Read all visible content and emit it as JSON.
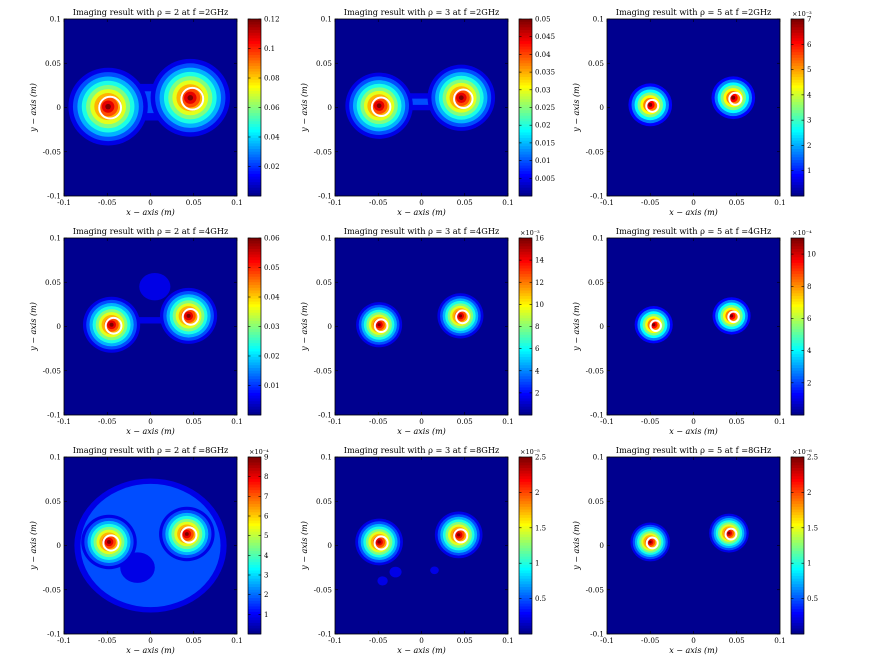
{
  "figure": {
    "colormap": "jet",
    "background_color": "#00008f"
  },
  "chart_data": [
    {
      "type": "heatmap",
      "title": "Imaging result with ρ = 2 at f =2GHz",
      "xlabel": "x − axis (m)",
      "ylabel": "y − axis (m)",
      "xlim": [
        -0.1,
        0.1
      ],
      "ylim": [
        -0.1,
        0.1
      ],
      "xticks": [
        "-0.1",
        "-0.05",
        "0",
        "0.05",
        "0.1"
      ],
      "yticks": [
        "0.1",
        "0.05",
        "0",
        "-0.05",
        "-0.1"
      ],
      "colorbar": {
        "min": 0,
        "max": 0.12,
        "ticks": [
          "0.12",
          "0.1",
          "0.08",
          "0.06",
          "0.04",
          "0.02"
        ],
        "exponent": ""
      },
      "sources": [
        {
          "x": -0.049,
          "y": 0.001
        },
        {
          "x": 0.046,
          "y": 0.011
        }
      ],
      "levels": 10,
      "spread": 1.0,
      "bridge": 0.55,
      "extra_blobs": 0
    },
    {
      "type": "heatmap",
      "title": "Imaging result with ρ = 3 at f =2GHz",
      "xlabel": "x − axis (m)",
      "ylabel": "y − axis (m)",
      "xlim": [
        -0.1,
        0.1
      ],
      "ylim": [
        -0.1,
        0.1
      ],
      "xticks": [
        "-0.1",
        "-0.05",
        "0",
        "0.05",
        "0.1"
      ],
      "yticks": [
        "0.1",
        "0.05",
        "0",
        "-0.05",
        "-0.1"
      ],
      "colorbar": {
        "min": 0,
        "max": 0.05,
        "ticks": [
          "0.05",
          "0.045",
          "0.04",
          "0.035",
          "0.03",
          "0.025",
          "0.02",
          "0.015",
          "0.01",
          "0.005"
        ],
        "exponent": ""
      },
      "sources": [
        {
          "x": -0.049,
          "y": 0.002
        },
        {
          "x": 0.046,
          "y": 0.011
        }
      ],
      "levels": 10,
      "spread": 0.85,
      "bridge": 0.35,
      "extra_blobs": 0
    },
    {
      "type": "heatmap",
      "title": "Imaging result with ρ = 5 at f =2GHz",
      "xlabel": "x − axis (m)",
      "ylabel": "y − axis (m)",
      "xlim": [
        -0.1,
        0.1
      ],
      "ylim": [
        -0.1,
        0.1
      ],
      "xticks": [
        "-0.1",
        "-0.05",
        "0",
        "0.05",
        "0.1"
      ],
      "yticks": [
        "0.1",
        "0.05",
        "0",
        "-0.05",
        "-0.1"
      ],
      "colorbar": {
        "min": 0,
        "max": 7,
        "ticks": [
          "7",
          "6",
          "5",
          "4",
          "3",
          "2",
          "1"
        ],
        "exponent": "×10⁻³"
      },
      "sources": [
        {
          "x": -0.05,
          "y": 0.003
        },
        {
          "x": 0.046,
          "y": 0.011
        }
      ],
      "levels": 8,
      "spread": 0.55,
      "bridge": 0,
      "extra_blobs": 0
    },
    {
      "type": "heatmap",
      "title": "Imaging result with ρ = 2 at f =4GHz",
      "xlabel": "x − axis (m)",
      "ylabel": "y − axis (m)",
      "xlim": [
        -0.1,
        0.1
      ],
      "ylim": [
        -0.1,
        0.1
      ],
      "xticks": [
        "-0.1",
        "-0.05",
        "0",
        "0.05",
        "0.1"
      ],
      "yticks": [
        "0.1",
        "0.05",
        "0",
        "-0.05",
        "-0.1"
      ],
      "colorbar": {
        "min": 0,
        "max": 0.06,
        "ticks": [
          "0.06",
          "0.05",
          "0.04",
          "0.03",
          "0.02",
          "0.01"
        ],
        "exponent": ""
      },
      "sources": [
        {
          "x": -0.045,
          "y": 0.002
        },
        {
          "x": 0.044,
          "y": 0.012
        }
      ],
      "levels": 10,
      "spread": 0.72,
      "bridge": 0.2,
      "extra_blobs": 1
    },
    {
      "type": "heatmap",
      "title": "Imaging result with ρ = 3 at f =4GHz",
      "xlabel": "x − axis (m)",
      "ylabel": "y − axis (m)",
      "xlim": [
        -0.1,
        0.1
      ],
      "ylim": [
        -0.1,
        0.1
      ],
      "xticks": [
        "-0.1",
        "-0.05",
        "0",
        "0.05",
        "0.1"
      ],
      "yticks": [
        "0.1",
        "0.05",
        "0",
        "-0.05",
        "-0.1"
      ],
      "colorbar": {
        "min": 0,
        "max": 16,
        "ticks": [
          "16",
          "14",
          "12",
          "10",
          "8",
          "6",
          "4",
          "2"
        ],
        "exponent": "×10⁻³"
      },
      "sources": [
        {
          "x": -0.049,
          "y": 0.002
        },
        {
          "x": 0.045,
          "y": 0.012
        }
      ],
      "levels": 10,
      "spread": 0.58,
      "bridge": 0,
      "extra_blobs": 0
    },
    {
      "type": "heatmap",
      "title": "Imaging result with ρ = 5 at f =4GHz",
      "xlabel": "x − axis (m)",
      "ylabel": "y − axis (m)",
      "xlim": [
        -0.1,
        0.1
      ],
      "ylim": [
        -0.1,
        0.1
      ],
      "xticks": [
        "-0.1",
        "-0.05",
        "0",
        "0.05",
        "0.1"
      ],
      "yticks": [
        "0.1",
        "0.05",
        "0",
        "-0.05",
        "-0.1"
      ],
      "colorbar": {
        "min": 0,
        "max": 11,
        "ticks": [
          "10",
          "8",
          "6",
          "4",
          "2"
        ],
        "exponent": "×10⁻⁴"
      },
      "sources": [
        {
          "x": -0.046,
          "y": 0.002
        },
        {
          "x": 0.044,
          "y": 0.012
        }
      ],
      "levels": 8,
      "spread": 0.48,
      "bridge": 0,
      "extra_blobs": 0
    },
    {
      "type": "heatmap",
      "title": "Imaging result with ρ = 2 at f =8GHz",
      "xlabel": "x − axis (m)",
      "ylabel": "y − axis (m)",
      "xlim": [
        -0.1,
        0.1
      ],
      "ylim": [
        -0.1,
        0.1
      ],
      "xticks": [
        "-0.1",
        "-0.05",
        "0",
        "0.05",
        "0.1"
      ],
      "yticks": [
        "0.1",
        "0.05",
        "0",
        "-0.05",
        "-0.1"
      ],
      "colorbar": {
        "min": 0,
        "max": 9,
        "ticks": [
          "9",
          "8",
          "7",
          "6",
          "5",
          "4",
          "3",
          "2",
          "1"
        ],
        "exponent": "×10⁻⁴"
      },
      "sources": [
        {
          "x": -0.048,
          "y": 0.004
        },
        {
          "x": 0.042,
          "y": 0.013
        }
      ],
      "levels": 10,
      "spread": 0.7,
      "bridge": 0.25,
      "extra_blobs": 2
    },
    {
      "type": "heatmap",
      "title": "Imaging result with ρ = 3 at f =8GHz",
      "xlabel": "x − axis (m)",
      "ylabel": "y − axis (m)",
      "xlim": [
        -0.1,
        0.1
      ],
      "ylim": [
        -0.1,
        0.1
      ],
      "xticks": [
        "-0.1",
        "-0.05",
        "0",
        "0.05",
        "0.1"
      ],
      "yticks": [
        "0.1",
        "0.05",
        "0",
        "-0.05",
        "-0.1"
      ],
      "colorbar": {
        "min": 0,
        "max": 2.5,
        "ticks": [
          "2.5",
          "2",
          "1.5",
          "1",
          "0.5"
        ],
        "exponent": "×10⁻⁵"
      },
      "sources": [
        {
          "x": -0.049,
          "y": 0.004
        },
        {
          "x": 0.043,
          "y": 0.012
        }
      ],
      "levels": 10,
      "spread": 0.6,
      "bridge": 0,
      "extra_blobs": 3
    },
    {
      "type": "heatmap",
      "title": "Imaging result with ρ = 5 at f =8GHz",
      "xlabel": "x − axis (m)",
      "ylabel": "y − axis (m)",
      "xlim": [
        -0.1,
        0.1
      ],
      "ylim": [
        -0.1,
        0.1
      ],
      "xticks": [
        "-0.1",
        "-0.05",
        "0",
        "0.05",
        "0.1"
      ],
      "yticks": [
        "0.1",
        "0.05",
        "0",
        "-0.05",
        "-0.1"
      ],
      "colorbar": {
        "min": 0,
        "max": 2.5,
        "ticks": [
          "2.5",
          "2",
          "1.5",
          "1",
          "0.5"
        ],
        "exponent": "×10⁻⁶"
      },
      "sources": [
        {
          "x": -0.05,
          "y": 0.004
        },
        {
          "x": 0.041,
          "y": 0.014
        }
      ],
      "levels": 10,
      "spread": 0.5,
      "bridge": 0,
      "extra_blobs": 0
    }
  ]
}
